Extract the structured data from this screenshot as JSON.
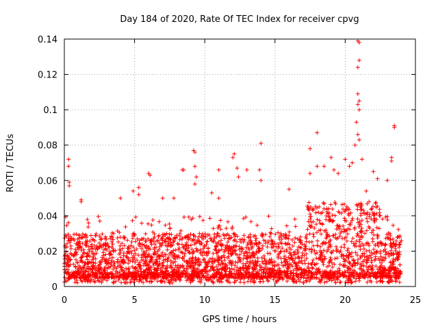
{
  "chart_data": {
    "type": "scatter",
    "title": "Day 184 of 2020, Rate Of TEC Index for receiver cpvg",
    "xlabel": "GPS time / hours",
    "ylabel": "ROTI / TECUs",
    "xlim": [
      0,
      25
    ],
    "ylim": [
      0,
      0.14
    ],
    "xticks": [
      "0",
      "5",
      "10",
      "15",
      "20",
      "25"
    ],
    "yticks": [
      "0",
      "0.02",
      "0.04",
      "0.06",
      "0.08",
      "0.1",
      "0.12",
      "0.14"
    ],
    "grid": true,
    "marker": "+",
    "color": "#ff0000",
    "x_range_of_points": [
      0,
      24
    ],
    "background_level": {
      "typical_min": 0.005,
      "typical_max": 0.03,
      "frequent_max": 0.04
    },
    "series": [
      {
        "points": [
          [
            0.3,
            0.072
          ],
          [
            0.3,
            0.068
          ],
          [
            0.35,
            0.059
          ],
          [
            0.35,
            0.057
          ],
          [
            1.2,
            0.049
          ],
          [
            1.2,
            0.048
          ],
          [
            4.0,
            0.05
          ],
          [
            4.9,
            0.054
          ],
          [
            5.3,
            0.056
          ],
          [
            5.3,
            0.052
          ],
          [
            6.0,
            0.064
          ],
          [
            6.1,
            0.063
          ],
          [
            7.0,
            0.05
          ],
          [
            7.8,
            0.05
          ],
          [
            8.4,
            0.066
          ],
          [
            8.5,
            0.066
          ],
          [
            9.2,
            0.077
          ],
          [
            9.3,
            0.076
          ],
          [
            9.3,
            0.068
          ],
          [
            9.4,
            0.062
          ],
          [
            9.3,
            0.058
          ],
          [
            10.5,
            0.053
          ],
          [
            11.0,
            0.05
          ],
          [
            11.0,
            0.066
          ],
          [
            12.0,
            0.073
          ],
          [
            12.1,
            0.075
          ],
          [
            12.4,
            0.062
          ],
          [
            12.3,
            0.067
          ],
          [
            13.0,
            0.066
          ],
          [
            14.0,
            0.081
          ],
          [
            13.9,
            0.066
          ],
          [
            14.0,
            0.06
          ],
          [
            16.0,
            0.055
          ],
          [
            17.5,
            0.078
          ],
          [
            17.5,
            0.064
          ],
          [
            18.0,
            0.087
          ],
          [
            18.0,
            0.068
          ],
          [
            18.5,
            0.068
          ],
          [
            19.0,
            0.073
          ],
          [
            19.2,
            0.066
          ],
          [
            19.5,
            0.064
          ],
          [
            20.0,
            0.072
          ],
          [
            20.3,
            0.068
          ],
          [
            20.5,
            0.07
          ],
          [
            20.7,
            0.08
          ],
          [
            20.8,
            0.093
          ],
          [
            20.9,
            0.109
          ],
          [
            21.0,
            0.105
          ],
          [
            20.9,
            0.103
          ],
          [
            21.0,
            0.1
          ],
          [
            20.9,
            0.086
          ],
          [
            21.0,
            0.083
          ],
          [
            20.9,
            0.124
          ],
          [
            21.0,
            0.128
          ],
          [
            20.9,
            0.139
          ],
          [
            21.0,
            0.138
          ],
          [
            21.2,
            0.072
          ],
          [
            21.5,
            0.054
          ],
          [
            22.0,
            0.065
          ],
          [
            22.3,
            0.061
          ],
          [
            23.0,
            0.06
          ],
          [
            23.3,
            0.073
          ],
          [
            23.3,
            0.071
          ],
          [
            23.5,
            0.091
          ],
          [
            23.5,
            0.09
          ]
        ]
      }
    ]
  }
}
